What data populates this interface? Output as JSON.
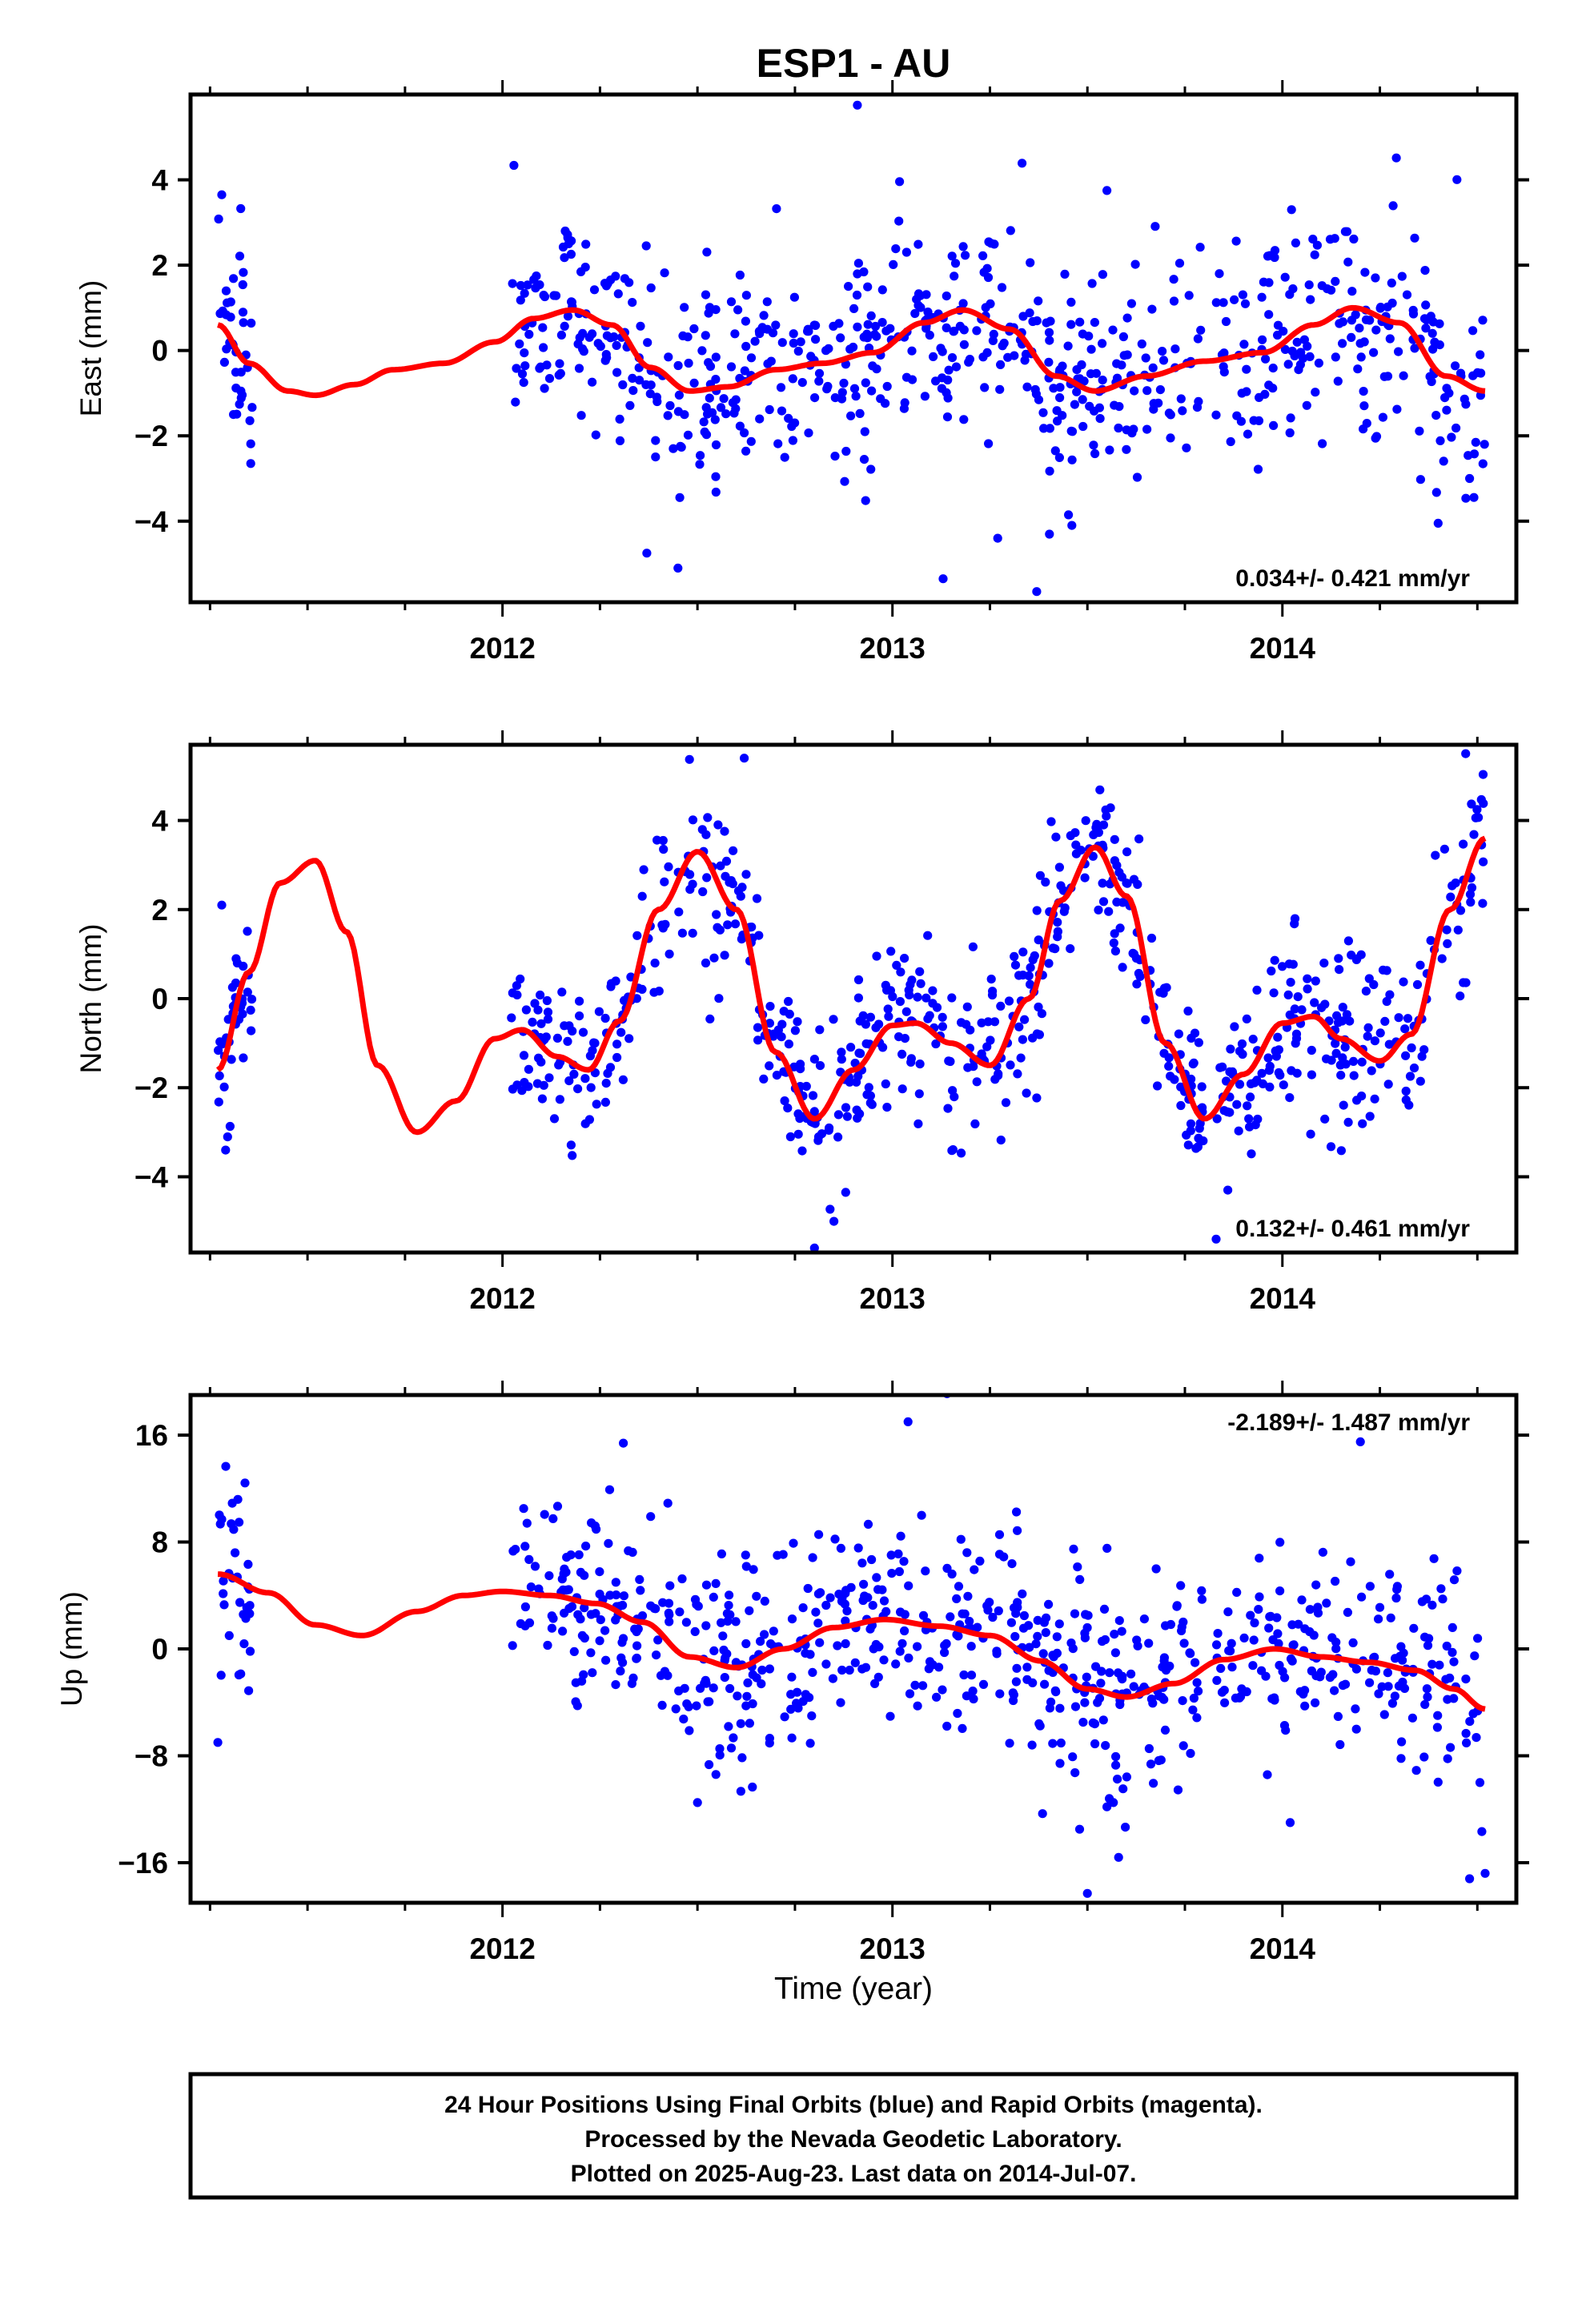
{
  "title": "ESP1 - AU",
  "colors": {
    "final": "#0000ff",
    "rapid": "#ff00ff",
    "model": "#ff0000",
    "frame": "#000000"
  },
  "xlabel": "Time (year)",
  "footer": [
    "24 Hour Positions Using Final Orbits (blue) and Rapid Orbits (magenta).",
    "Processed by the Nevada Geodetic Laboratory.",
    "Plotted on 2025-Aug-23. Last data on 2014-Jul-07."
  ],
  "chart_data": [
    {
      "type": "scatter",
      "ylabel": "East (mm)",
      "xlim": [
        2011.2,
        2014.6
      ],
      "ylim": [
        -5.9,
        6.0
      ],
      "yticks": [
        -4,
        -2,
        0,
        2,
        4
      ],
      "xticks": [
        2012,
        2013,
        2014
      ],
      "rate": "0.034+/- 0.421 mm/yr",
      "seed": 11,
      "gaps": [
        [
          2011.36,
          2012.02
        ],
        [
          2013.8,
          2013.83
        ]
      ],
      "scatter_sd": 1.25,
      "n_points": 720,
      "x_range": [
        2011.27,
        2014.52
      ],
      "model": {
        "x": [
          2011.27,
          2011.35,
          2011.45,
          2011.52,
          2011.62,
          2011.72,
          2011.85,
          2011.98,
          2012.08,
          2012.18,
          2012.28,
          2012.38,
          2012.48,
          2012.58,
          2012.7,
          2012.82,
          2012.95,
          2013.08,
          2013.18,
          2013.3,
          2013.42,
          2013.52,
          2013.65,
          2013.8,
          2013.95,
          2014.08,
          2014.18,
          2014.3,
          2014.42,
          2014.52
        ],
        "y": [
          0.6,
          -0.3,
          -0.95,
          -1.05,
          -0.8,
          -0.45,
          -0.3,
          0.2,
          0.75,
          0.95,
          0.6,
          -0.4,
          -0.95,
          -0.85,
          -0.45,
          -0.3,
          -0.05,
          0.65,
          0.95,
          0.5,
          -0.6,
          -0.95,
          -0.6,
          -0.25,
          -0.05,
          0.6,
          1.0,
          0.65,
          -0.6,
          -0.95
        ]
      },
      "outliers": [
        [
          2012.91,
          5.75
        ],
        [
          2013.55,
          3.75
        ],
        [
          2012.37,
          -4.75
        ],
        [
          2012.45,
          -5.1
        ],
        [
          2013.13,
          -5.35
        ],
        [
          2013.27,
          -4.4
        ],
        [
          2013.37,
          -5.65
        ],
        [
          2013.46,
          -4.1
        ],
        [
          2011.28,
          3.65
        ],
        [
          2011.31,
          -1.5
        ],
        [
          2014.48,
          -3.0
        ]
      ]
    },
    {
      "type": "scatter",
      "ylabel": "North (mm)",
      "xlim": [
        2011.2,
        2014.6
      ],
      "ylim": [
        -5.7,
        5.7
      ],
      "yticks": [
        -4,
        -2,
        0,
        2,
        4
      ],
      "xticks": [
        2012,
        2013,
        2014
      ],
      "rate": "0.132+/- 0.461 mm/yr",
      "seed": 23,
      "gaps": [
        [
          2011.36,
          2012.02
        ],
        [
          2013.8,
          2013.83
        ]
      ],
      "scatter_sd": 0.95,
      "n_points": 720,
      "x_range": [
        2011.27,
        2014.52
      ],
      "model": {
        "x": [
          2011.27,
          2011.35,
          2011.43,
          2011.52,
          2011.6,
          2011.68,
          2011.78,
          2011.88,
          2011.98,
          2012.05,
          2012.14,
          2012.22,
          2012.3,
          2012.4,
          2012.5,
          2012.6,
          2012.7,
          2012.8,
          2012.9,
          2013.0,
          2013.06,
          2013.15,
          2013.25,
          2013.35,
          2013.43,
          2013.52,
          2013.6,
          2013.7,
          2013.8,
          2013.9,
          2014.0,
          2014.08,
          2014.15,
          2014.25,
          2014.33,
          2014.43,
          2014.52
        ],
        "y": [
          -1.6,
          0.6,
          2.6,
          3.1,
          1.5,
          -1.5,
          -3.0,
          -2.3,
          -0.9,
          -0.7,
          -1.3,
          -1.6,
          -0.5,
          2.0,
          3.3,
          2.0,
          -1.2,
          -2.7,
          -1.6,
          -0.6,
          -0.55,
          -1.0,
          -1.5,
          0.0,
          2.2,
          3.4,
          2.3,
          -1.0,
          -2.7,
          -1.7,
          -0.55,
          -0.4,
          -0.9,
          -1.4,
          -0.8,
          2.0,
          3.6
        ]
      },
      "outliers": [
        [
          2012.8,
          -5.6
        ],
        [
          2012.85,
          -5.0
        ],
        [
          2012.88,
          -4.35
        ],
        [
          2012.62,
          5.4
        ],
        [
          2014.47,
          5.5
        ],
        [
          2011.28,
          2.1
        ],
        [
          2011.29,
          -3.4
        ],
        [
          2013.83,
          -5.4
        ],
        [
          2013.86,
          -4.3
        ]
      ]
    },
    {
      "type": "scatter",
      "ylabel": "Up (mm)",
      "xlim": [
        2011.2,
        2014.6
      ],
      "ylim": [
        -19,
        19
      ],
      "yticks": [
        -16,
        -8,
        0,
        8,
        16
      ],
      "xticks": [
        2012,
        2013,
        2014
      ],
      "rate": "-2.189+/- 1.487 mm/yr",
      "seed": 37,
      "gaps": [
        [
          2011.36,
          2012.02
        ],
        [
          2013.8,
          2013.83
        ]
      ],
      "scatter_sd": 3.9,
      "n_points": 720,
      "x_range": [
        2011.27,
        2014.52
      ],
      "model": {
        "x": [
          2011.27,
          2011.4,
          2011.52,
          2011.64,
          2011.78,
          2011.9,
          2012.0,
          2012.12,
          2012.24,
          2012.36,
          2012.48,
          2012.6,
          2012.72,
          2012.85,
          2012.98,
          2013.12,
          2013.25,
          2013.38,
          2013.5,
          2013.6,
          2013.72,
          2013.85,
          2013.98,
          2014.1,
          2014.22,
          2014.34,
          2014.44,
          2014.52
        ],
        "y": [
          5.6,
          4.2,
          1.8,
          1.0,
          2.8,
          4.0,
          4.3,
          4.0,
          3.4,
          2.0,
          -0.6,
          -1.4,
          0.0,
          1.6,
          2.2,
          1.7,
          1.0,
          -0.9,
          -3.0,
          -3.6,
          -2.6,
          -0.8,
          0.0,
          -0.6,
          -1.0,
          -1.6,
          -3.0,
          -4.5
        ]
      },
      "outliers": [
        [
          2013.04,
          17.0
        ],
        [
          2013.14,
          19.1
        ],
        [
          2012.31,
          15.4
        ],
        [
          2014.2,
          15.5
        ],
        [
          2013.5,
          -18.3
        ],
        [
          2013.48,
          -13.5
        ],
        [
          2013.58,
          -15.6
        ],
        [
          2014.48,
          -17.2
        ],
        [
          2014.52,
          -16.8
        ],
        [
          2014.02,
          -13.0
        ],
        [
          2011.27,
          -7.0
        ],
        [
          2011.28,
          9.7
        ],
        [
          2012.5,
          -11.5
        ]
      ]
    }
  ]
}
